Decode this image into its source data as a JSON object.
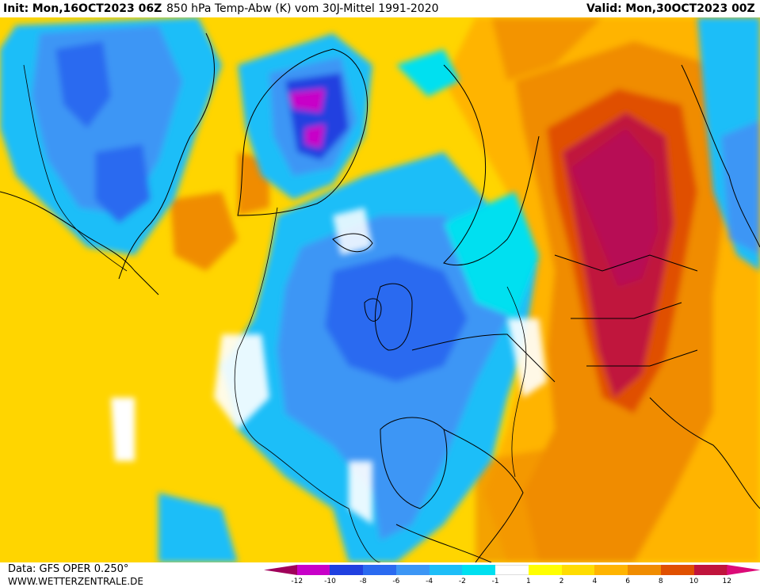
{
  "header": {
    "init_label": "Init:",
    "init_value": "Mon,16OCT2023 06Z",
    "description": "850 hPa Temp-Abw (K) vom 30J-Mittel 1991-2020",
    "valid_label": "Valid:",
    "valid_value": "Mon,30OCT2023 00Z"
  },
  "footer": {
    "data_source": "Data: GFS OPER 0.250°",
    "website": "WWW.WETTERZENTRALE.DE"
  },
  "legend": {
    "levels": [
      "-12",
      "-10",
      "-8",
      "-6",
      "-4",
      "-2",
      "-1",
      "1",
      "2",
      "4",
      "6",
      "8",
      "10",
      "12"
    ],
    "colors": [
      "#a0005a",
      "#c800c8",
      "#2040e0",
      "#2a6af0",
      "#3c96f5",
      "#1ebef8",
      "#00e0f0",
      "#ffffff",
      "#ffff00",
      "#ffdc00",
      "#ffb400",
      "#f08c00",
      "#e05000",
      "#c0143c",
      "#dc0a78"
    ]
  },
  "map": {
    "colors": {
      "background": "#ffd000",
      "land": "#ffd000"
    }
  }
}
